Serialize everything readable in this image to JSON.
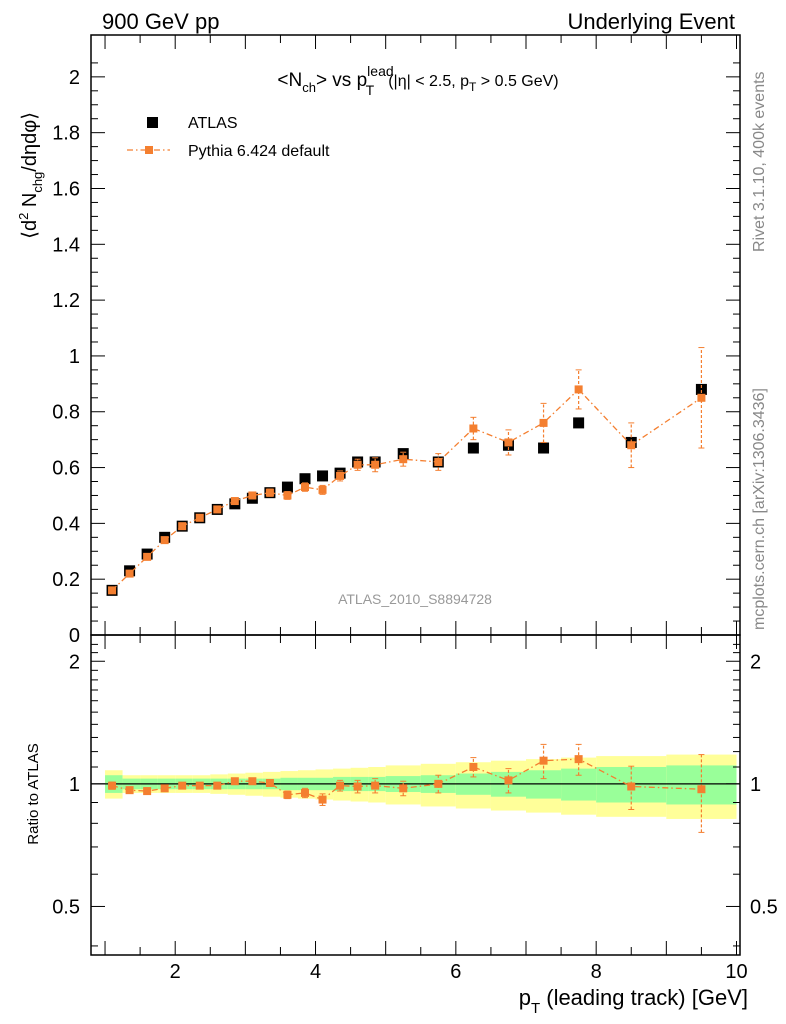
{
  "header": {
    "left_label": "900 GeV pp",
    "right_label": "Underlying Event"
  },
  "side_labels": {
    "rivet": "Rivet 3.1.10,  400k events",
    "mcplots": "mcplots.cern.ch [arXiv:1306.3436]"
  },
  "analysis_label": "ATLAS_2010_S8894728",
  "colors": {
    "data": "#000000",
    "mc": "#f47f30",
    "band_inner": "#99ff99",
    "band_outer": "#ffff99"
  },
  "chart_data": [
    {
      "type": "scatter",
      "title_parts": {
        "main": "<N",
        "main_sub": "ch",
        "mid": "> vs p",
        "lead_sup": "lead",
        "lead_sub": "T",
        "cut_a": "(|η| < 2.5, p",
        "cut_sub": "T",
        "cut_b": " > 0.5 GeV)"
      },
      "ylabel_parts": {
        "a": "⟨d",
        "sup": "2",
        "b": " N",
        "sub": "chg",
        "c": "/dηdφ⟩"
      },
      "ylim": [
        0,
        2.15
      ],
      "xlim": [
        0.8,
        10.05
      ],
      "y_ticks": [
        {
          "v": 0,
          "label": "0"
        },
        {
          "v": 0.2,
          "label": "0.2"
        },
        {
          "v": 0.4,
          "label": "0.4"
        },
        {
          "v": 0.6,
          "label": "0.6"
        },
        {
          "v": 0.8,
          "label": "0.8"
        },
        {
          "v": 1.0,
          "label": "1"
        },
        {
          "v": 1.2,
          "label": "1.2"
        },
        {
          "v": 1.4,
          "label": "1.4"
        },
        {
          "v": 1.6,
          "label": "1.6"
        },
        {
          "v": 1.8,
          "label": "1.8"
        },
        {
          "v": 2.0,
          "label": "2"
        }
      ],
      "legend": {
        "position": "top-left",
        "entries": [
          "ATLAS",
          "Pythia 6.424 default"
        ]
      },
      "series": [
        {
          "name": "ATLAS",
          "marker": "square",
          "points": [
            {
              "x": 1.1,
              "y": 0.16
            },
            {
              "x": 1.35,
              "y": 0.23
            },
            {
              "x": 1.6,
              "y": 0.29
            },
            {
              "x": 1.85,
              "y": 0.35
            },
            {
              "x": 2.1,
              "y": 0.39
            },
            {
              "x": 2.35,
              "y": 0.42
            },
            {
              "x": 2.6,
              "y": 0.45
            },
            {
              "x": 2.85,
              "y": 0.47
            },
            {
              "x": 3.1,
              "y": 0.49
            },
            {
              "x": 3.35,
              "y": 0.51
            },
            {
              "x": 3.6,
              "y": 0.53
            },
            {
              "x": 3.85,
              "y": 0.56
            },
            {
              "x": 4.1,
              "y": 0.57
            },
            {
              "x": 4.35,
              "y": 0.58
            },
            {
              "x": 4.6,
              "y": 0.62
            },
            {
              "x": 4.85,
              "y": 0.62
            },
            {
              "x": 5.25,
              "y": 0.65
            },
            {
              "x": 5.75,
              "y": 0.62
            },
            {
              "x": 6.25,
              "y": 0.67
            },
            {
              "x": 6.75,
              "y": 0.68
            },
            {
              "x": 7.25,
              "y": 0.67
            },
            {
              "x": 7.75,
              "y": 0.76
            },
            {
              "x": 8.5,
              "y": 0.69
            },
            {
              "x": 9.5,
              "y": 0.88
            }
          ]
        },
        {
          "name": "Pythia 6.424 default",
          "marker": "square-line-dashdot",
          "points": [
            {
              "x": 1.1,
              "y": 0.16,
              "err": 0.005
            },
            {
              "x": 1.35,
              "y": 0.22,
              "err": 0.006
            },
            {
              "x": 1.6,
              "y": 0.28,
              "err": 0.007
            },
            {
              "x": 1.85,
              "y": 0.34,
              "err": 0.008
            },
            {
              "x": 2.1,
              "y": 0.39,
              "err": 0.009
            },
            {
              "x": 2.35,
              "y": 0.42,
              "err": 0.01
            },
            {
              "x": 2.6,
              "y": 0.45,
              "err": 0.01
            },
            {
              "x": 2.85,
              "y": 0.48,
              "err": 0.01
            },
            {
              "x": 3.1,
              "y": 0.5,
              "err": 0.012
            },
            {
              "x": 3.35,
              "y": 0.51,
              "err": 0.013
            },
            {
              "x": 3.6,
              "y": 0.5,
              "err": 0.014
            },
            {
              "x": 3.85,
              "y": 0.53,
              "err": 0.015
            },
            {
              "x": 4.1,
              "y": 0.52,
              "err": 0.016
            },
            {
              "x": 4.35,
              "y": 0.57,
              "err": 0.018
            },
            {
              "x": 4.6,
              "y": 0.61,
              "err": 0.02
            },
            {
              "x": 4.85,
              "y": 0.61,
              "err": 0.025
            },
            {
              "x": 5.25,
              "y": 0.63,
              "err": 0.025
            },
            {
              "x": 5.75,
              "y": 0.62,
              "err": 0.03
            },
            {
              "x": 6.25,
              "y": 0.74,
              "err": 0.04
            },
            {
              "x": 6.75,
              "y": 0.69,
              "err": 0.045
            },
            {
              "x": 7.25,
              "y": 0.76,
              "err": 0.07
            },
            {
              "x": 7.75,
              "y": 0.88,
              "err": 0.07
            },
            {
              "x": 8.5,
              "y": 0.68,
              "err": 0.08
            },
            {
              "x": 9.5,
              "y": 0.85,
              "err": 0.18
            }
          ]
        }
      ]
    },
    {
      "type": "scatter",
      "ylabel": "Ratio to ATLAS",
      "xlabel_parts": {
        "a": "p",
        "sub": "T",
        "b": " (leading track) [GeV]"
      },
      "ylim": [
        0.38,
        2.32
      ],
      "xlim": [
        0.8,
        10.05
      ],
      "y_ticks": [
        {
          "v": 0.5,
          "label": "0.5"
        },
        {
          "v": 1.0,
          "label": "1"
        },
        {
          "v": 2.0,
          "label": "2"
        }
      ],
      "x_ticks": [
        {
          "v": 2,
          "label": "2"
        },
        {
          "v": 4,
          "label": "4"
        },
        {
          "v": 6,
          "label": "6"
        },
        {
          "v": 8,
          "label": "8"
        },
        {
          "v": 10,
          "label": "10"
        }
      ],
      "bands": {
        "edges": [
          1.0,
          1.25,
          1.5,
          1.75,
          2.0,
          2.25,
          2.5,
          2.75,
          3.0,
          3.25,
          3.5,
          3.75,
          4.0,
          4.25,
          4.5,
          4.75,
          5.0,
          5.5,
          6.0,
          6.5,
          7.0,
          7.5,
          8.0,
          9.0,
          10.0
        ],
        "inner": [
          0.05,
          0.03,
          0.03,
          0.03,
          0.03,
          0.03,
          0.03,
          0.03,
          0.03,
          0.03,
          0.035,
          0.035,
          0.035,
          0.04,
          0.04,
          0.04,
          0.045,
          0.05,
          0.06,
          0.07,
          0.08,
          0.09,
          0.1,
          0.11
        ],
        "outer": [
          0.08,
          0.05,
          0.05,
          0.05,
          0.05,
          0.05,
          0.055,
          0.06,
          0.065,
          0.07,
          0.075,
          0.08,
          0.085,
          0.09,
          0.095,
          0.1,
          0.11,
          0.12,
          0.13,
          0.14,
          0.15,
          0.16,
          0.17,
          0.18
        ]
      },
      "series": [
        {
          "name": "Pythia 6.424 default",
          "points": [
            {
              "x": 1.1,
              "y": 0.99,
              "err": 0.02
            },
            {
              "x": 1.35,
              "y": 0.965,
              "err": 0.015
            },
            {
              "x": 1.6,
              "y": 0.96,
              "err": 0.015
            },
            {
              "x": 1.85,
              "y": 0.975,
              "err": 0.015
            },
            {
              "x": 2.1,
              "y": 0.99,
              "err": 0.015
            },
            {
              "x": 2.35,
              "y": 0.99,
              "err": 0.015
            },
            {
              "x": 2.6,
              "y": 0.99,
              "err": 0.015
            },
            {
              "x": 2.85,
              "y": 1.015,
              "err": 0.015
            },
            {
              "x": 3.1,
              "y": 1.015,
              "err": 0.015
            },
            {
              "x": 3.35,
              "y": 1.005,
              "err": 0.015
            },
            {
              "x": 3.6,
              "y": 0.94,
              "err": 0.02
            },
            {
              "x": 3.85,
              "y": 0.95,
              "err": 0.025
            },
            {
              "x": 4.1,
              "y": 0.915,
              "err": 0.03
            },
            {
              "x": 4.35,
              "y": 0.99,
              "err": 0.03
            },
            {
              "x": 4.6,
              "y": 0.985,
              "err": 0.035
            },
            {
              "x": 4.85,
              "y": 0.99,
              "err": 0.04
            },
            {
              "x": 5.25,
              "y": 0.975,
              "err": 0.04
            },
            {
              "x": 5.75,
              "y": 1.0,
              "err": 0.05
            },
            {
              "x": 6.25,
              "y": 1.1,
              "err": 0.06
            },
            {
              "x": 6.75,
              "y": 1.02,
              "err": 0.07
            },
            {
              "x": 7.25,
              "y": 1.14,
              "err": 0.11
            },
            {
              "x": 7.75,
              "y": 1.15,
              "err": 0.1
            },
            {
              "x": 8.5,
              "y": 0.985,
              "err": 0.12
            },
            {
              "x": 9.5,
              "y": 0.97,
              "err": 0.21
            }
          ]
        }
      ]
    }
  ]
}
